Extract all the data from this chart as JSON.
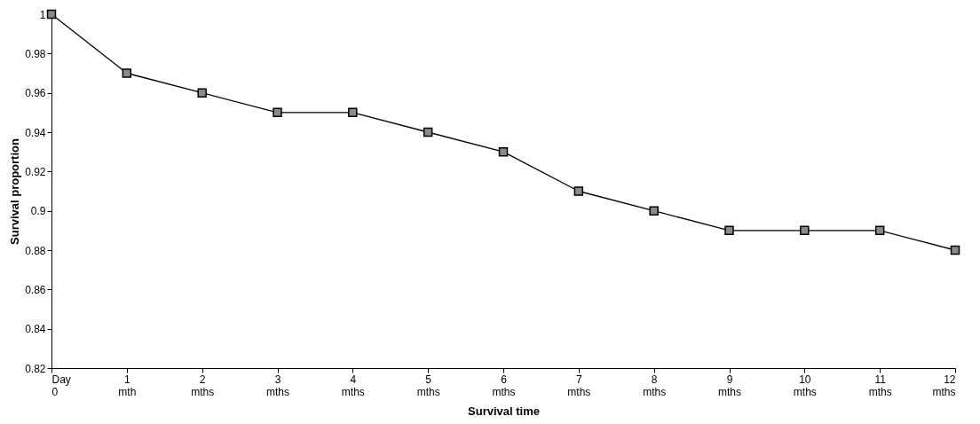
{
  "chart_data": {
    "type": "line",
    "xlabel": "Survival time",
    "ylabel": "Survival proportion",
    "categories": [
      "Day\n0",
      "1\nmth",
      "2\nmths",
      "3\nmths",
      "4\nmths",
      "5\nmths",
      "6\nmths",
      "7\nmths",
      "8\nmths",
      "9\nmths",
      "10\nmths",
      "11\nmths",
      "12\nmths"
    ],
    "series": [
      {
        "color": "#000000",
        "values": [
          1,
          0.97,
          0.96,
          0.95,
          0.95,
          0.94,
          0.93,
          0.91,
          0.9,
          0.89,
          0.89,
          0.89,
          0.88
        ]
      }
    ],
    "ylim": [
      0.82,
      1
    ],
    "yticks": [
      0.82,
      0.84,
      0.86,
      0.88,
      0.9,
      0.92,
      0.94,
      0.96,
      0.98,
      1
    ],
    "grid": false,
    "marker": "square",
    "line_style": "solid"
  }
}
